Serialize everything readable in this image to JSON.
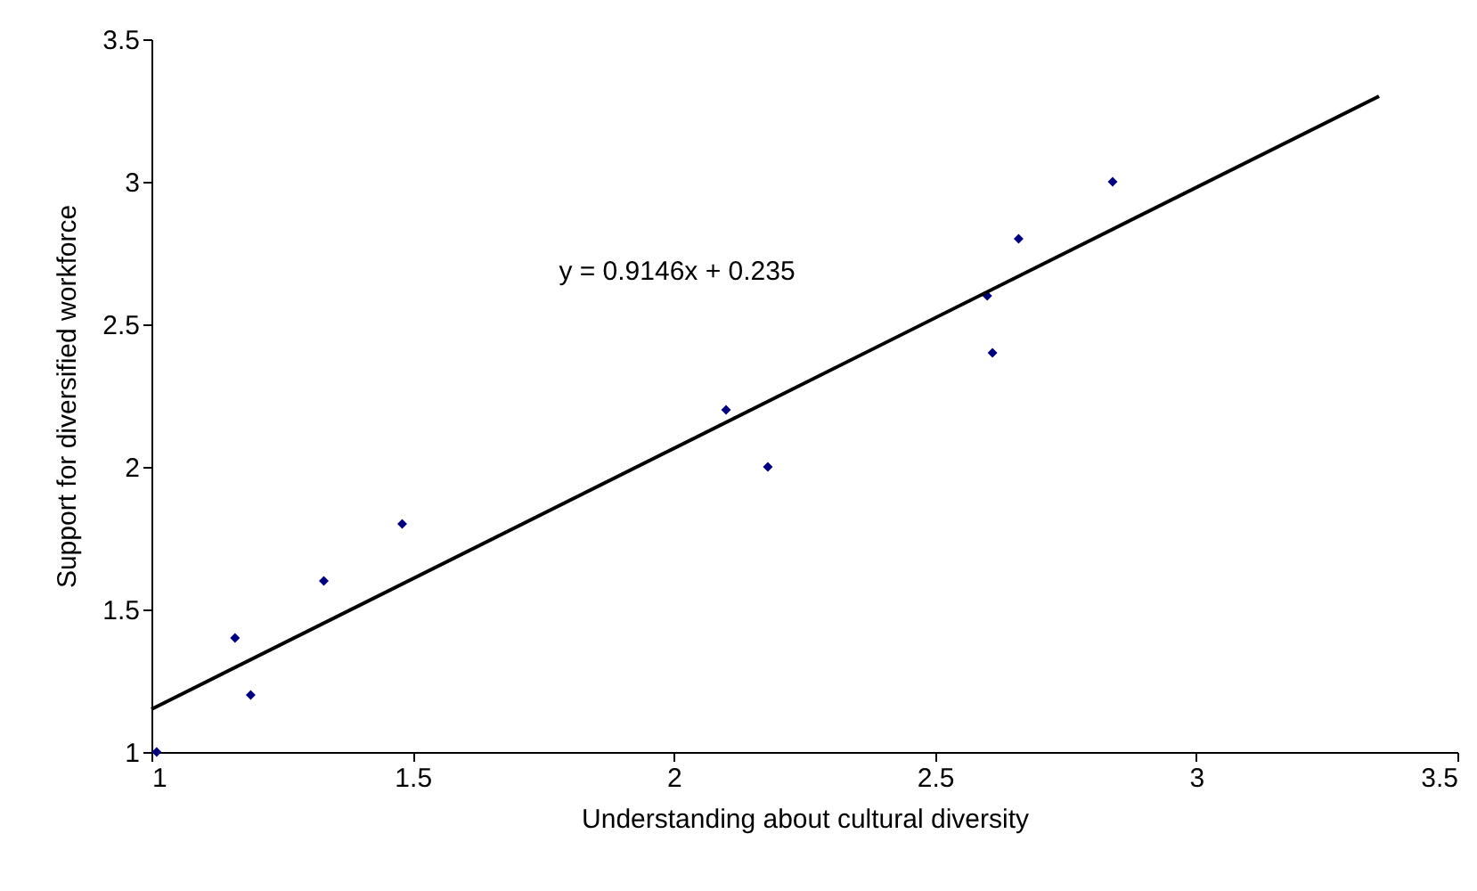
{
  "chart_data": {
    "type": "scatter",
    "xlabel": "Understanding about cultural diversity",
    "ylabel": "Support for diversified workforce",
    "annotations": [
      "y = 0.9146x + 0.235"
    ],
    "series": [
      {
        "color": "#000080",
        "marker": "diamond",
        "x": [
          1.01,
          1.16,
          1.19,
          1.33,
          1.48,
          2.1,
          2.18,
          2.6,
          2.61,
          2.66,
          2.84
        ],
        "values": [
          1.0,
          1.4,
          1.2,
          1.6,
          1.8,
          2.2,
          2.0,
          2.6,
          2.4,
          2.8,
          3.0
        ]
      },
      {
        "type": "line",
        "color": "#000000",
        "x": [
          1,
          3.35
        ],
        "values": [
          1.15,
          3.3
        ]
      }
    ],
    "xlim": [
      1,
      3.5
    ],
    "xticks": [
      1,
      1.5,
      2,
      2.5,
      3,
      3.5
    ],
    "ylim": [
      1,
      3.5
    ],
    "yticks": [
      1,
      1.5,
      2,
      2.5,
      3,
      3.5
    ],
    "grid": false
  }
}
